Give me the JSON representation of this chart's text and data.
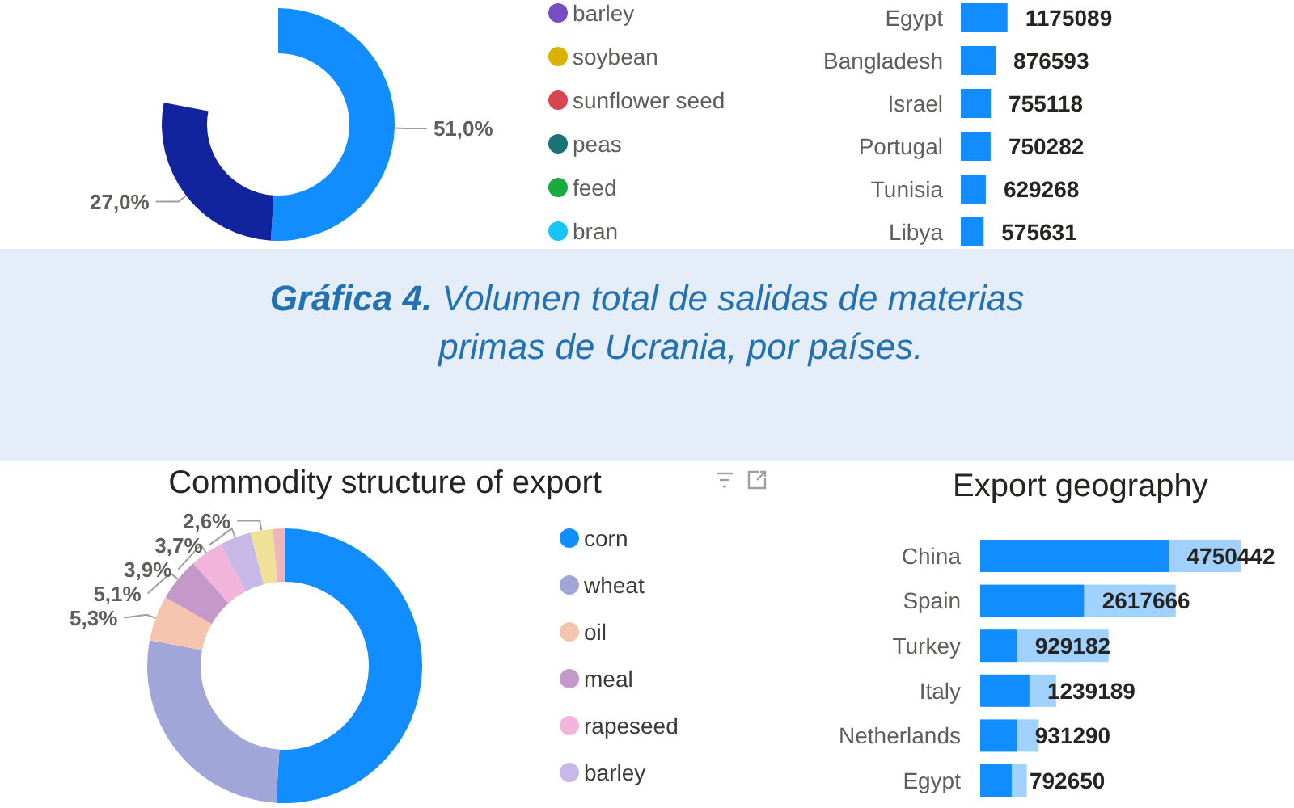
{
  "chart_data": [
    {
      "type": "donut",
      "categories": [
        null,
        null,
        "barley",
        "soybean",
        "sunflower seed",
        "peas",
        "feed",
        "bran"
      ],
      "values": [
        51,
        27,
        null,
        null,
        null,
        null,
        null,
        null
      ],
      "colors": [
        "#118dff",
        "#12239e",
        "#744ec2",
        "#d9b300",
        "#d64550",
        "#197278",
        "#1aab40",
        "#15c6f4"
      ],
      "value_labels": [
        "51,0%",
        "27,0%",
        null,
        null,
        null,
        null,
        null,
        null
      ],
      "legend": "right"
    },
    {
      "type": "bar",
      "orientation": "horizontal",
      "categories": [
        "Egypt",
        "Bangladesh",
        "Israel",
        "Portugal",
        "Tunisia",
        "Libya"
      ],
      "values": [
        1175089,
        876593,
        755118,
        750282,
        629268,
        575631
      ],
      "color": "#118dff",
      "data_labels": true
    },
    {
      "type": "other",
      "title": "Gráfica 4.",
      "subtitle": "Volumen total de salidas de materias primas de Ucrania, por países."
    },
    {
      "type": "donut",
      "title": "Commodity structure of export",
      "categories": [
        "corn",
        "wheat",
        "oil",
        "meal",
        "rapeseed",
        "barley",
        null,
        null
      ],
      "values": [
        51,
        27,
        5.3,
        5.1,
        3.9,
        3.7,
        2.6,
        1.4
      ],
      "colors": [
        "#118dff",
        "#a0a7d8",
        "#f5c4af",
        "#c499ca",
        "#f3b4dc",
        "#c8b8e7",
        "#f0e199",
        "#efb5b9"
      ],
      "value_labels": [
        null,
        null,
        "5,3%",
        "5,1%",
        "3,9%",
        "3,7%",
        "2,6%",
        null
      ],
      "legend": "right"
    },
    {
      "type": "bar",
      "orientation": "horizontal",
      "stacked": true,
      "title": "Export geography",
      "categories": [
        "China",
        "Spain",
        "Turkey",
        "Italy",
        "Netherlands",
        "Egypt"
      ],
      "series": [
        {
          "color": "#118dff",
          "values": [
            4750442,
            2617666,
            929182,
            1239189,
            931290,
            792650
          ],
          "value_labels": [
            "4750442",
            "2617666",
            "929182",
            "1239189",
            "931290",
            "792650"
          ]
        },
        {
          "color": "#a0d1ff",
          "values": [
            1800000,
            2300000,
            2300000,
            670000,
            540000,
            380000
          ]
        }
      ]
    }
  ]
}
